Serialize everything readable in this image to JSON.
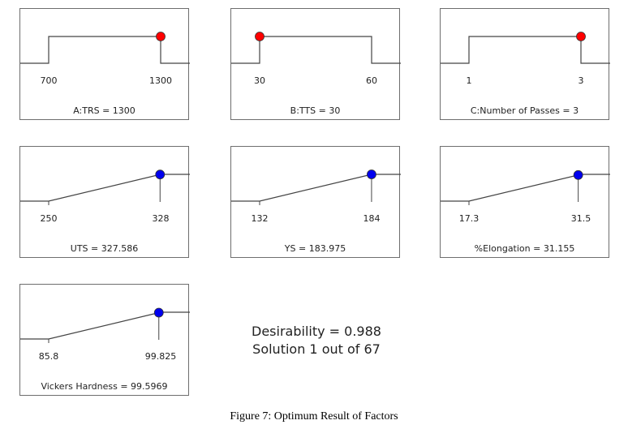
{
  "chart_data": [
    {
      "type": "ramp",
      "variable": "factor",
      "low": "700",
      "high": "1300",
      "low_value": 700,
      "high_value": 1300,
      "value": 1300,
      "label": "A:TRS = 1300",
      "point_color": "#ff0000"
    },
    {
      "type": "ramp",
      "variable": "factor",
      "low": "30",
      "high": "60",
      "low_value": 30,
      "high_value": 60,
      "value": 30,
      "label": "B:TTS = 30",
      "point_color": "#ff0000"
    },
    {
      "type": "ramp",
      "variable": "factor",
      "low": "1",
      "high": "3",
      "low_value": 1,
      "high_value": 3,
      "value": 3,
      "label": "C:Number of Passes = 3",
      "point_color": "#ff0000"
    },
    {
      "type": "ramp",
      "variable": "response",
      "low": "250",
      "high": "328",
      "low_value": 250,
      "high_value": 328,
      "value": 327.586,
      "label": "UTS = 327.586",
      "point_color": "#0000ee"
    },
    {
      "type": "ramp",
      "variable": "response",
      "low": "132",
      "high": "184",
      "low_value": 132,
      "high_value": 184,
      "value": 183.975,
      "label": "YS = 183.975",
      "point_color": "#0000ee"
    },
    {
      "type": "ramp",
      "variable": "response",
      "low": "17.3",
      "high": "31.5",
      "low_value": 17.3,
      "high_value": 31.5,
      "value": 31.155,
      "label": "%Elongation = 31.155",
      "point_color": "#0000ee"
    },
    {
      "type": "ramp",
      "variable": "response",
      "low": "85.8",
      "high": "99.825",
      "low_value": 85.8,
      "high_value": 99.825,
      "value": 99.5969,
      "label": "Vickers Hardness = 99.5969",
      "point_color": "#0000ee"
    }
  ],
  "summary": {
    "desirability": "Desirability = 0.988",
    "solution": "Solution 1 out of 67"
  },
  "caption": "Figure 7: Optimum Result of Factors"
}
